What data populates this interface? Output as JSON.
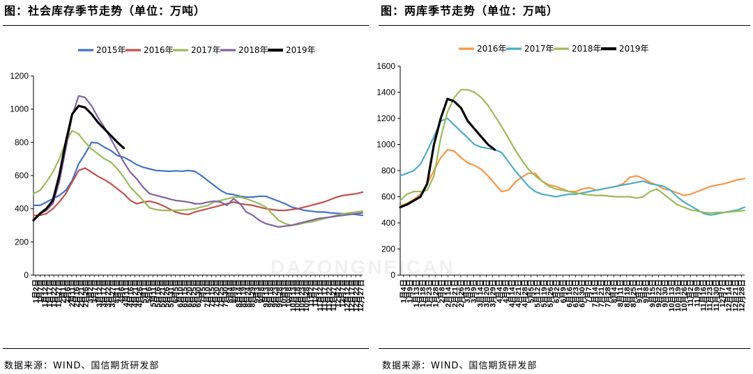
{
  "left_title": "图：社会库存季节走势（单位：万吨）",
  "right_title": "图：两库季节走势（单位：万吨）",
  "source_left": "数据来源：WIND、国信期货研发部",
  "source_right": "数据来源：WIND、国信期货研发部",
  "watermark": "DAZONGNEICAN",
  "colors": {
    "2015年": "#4472C4",
    "2016年": "#C0504D",
    "2017年": "#9BBB59",
    "2018年": "#8064A2",
    "2019年": "#000000",
    "2016年_r": "#F79646",
    "2017年_r": "#4BACC6"
  },
  "chart_data": [
    {
      "type": "line",
      "title": "社会库存季节走势（单位：万吨）",
      "ylim": [
        0,
        1200
      ],
      "yticks": [
        0,
        200,
        400,
        600,
        800,
        1000,
        1200
      ],
      "xlim": [
        0,
        51
      ],
      "x_tick_labels": [
        "1月2日",
        "1月7日",
        "1月12日",
        "1月17日",
        "1月22日",
        "1月27日",
        "2月1日",
        "2月6日",
        "2月11日",
        "2月16日",
        "2月21日",
        "2月26日",
        "3月2日",
        "3月7日",
        "3月12日",
        "3月17日",
        "3月22日",
        "3月27日",
        "4月1日",
        "4月6日",
        "4月11日",
        "4月16日",
        "4月21日",
        "4月26日",
        "5月1日",
        "5月6日",
        "5月11日",
        "5月16日",
        "5月21日",
        "5月26日",
        "5月31日",
        "6月5日",
        "6月10日",
        "6月15日",
        "6月20日",
        "6月25日",
        "6月30日",
        "7月5日",
        "7月10日",
        "7月15日",
        "7月20日",
        "7月25日",
        "7月30日",
        "8月4日",
        "8月9日",
        "8月14日",
        "8月19日",
        "8月24日",
        "8月29日",
        "9月3日",
        "9月8日",
        "9月13日",
        "9月18日",
        "9月23日",
        "9月28日",
        "10月3日",
        "10月8日",
        "10月13日",
        "10月18日",
        "10月23日",
        "10月28日",
        "11月2日",
        "11月7日",
        "11月12日",
        "11月17日",
        "11月22日",
        "11月27日",
        "12月2日",
        "12月7日",
        "12月12日",
        "12月17日",
        "12月22日",
        "12月27日"
      ],
      "legend": "top-center",
      "grid": false,
      "series": [
        {
          "name": "2015年",
          "color": "#4472C4",
          "width": 2.2,
          "x": [
            0,
            1,
            2,
            3,
            4,
            5,
            6,
            7,
            8,
            9,
            10,
            11,
            12,
            13,
            14,
            15,
            16,
            17,
            18,
            19,
            20,
            21,
            22,
            23,
            24,
            25,
            26,
            27,
            28,
            29,
            30,
            31,
            32,
            33,
            34,
            35,
            36,
            37,
            38,
            39,
            40,
            41,
            42,
            43,
            44,
            45,
            46,
            47,
            48,
            49,
            50,
            51
          ],
          "values": [
            420,
            420,
            440,
            460,
            480,
            510,
            570,
            670,
            730,
            800,
            795,
            770,
            750,
            720,
            710,
            690,
            665,
            650,
            640,
            630,
            628,
            625,
            628,
            626,
            630,
            625,
            600,
            570,
            540,
            510,
            490,
            485,
            475,
            470,
            470,
            475,
            475,
            460,
            445,
            430,
            410,
            400,
            390,
            385,
            380,
            380,
            375,
            372,
            370,
            368,
            365,
            360
          ]
        },
        {
          "name": "2016年",
          "color": "#C0504D",
          "width": 2.2,
          "x": [
            0,
            1,
            2,
            3,
            4,
            5,
            6,
            7,
            8,
            9,
            10,
            11,
            12,
            13,
            14,
            15,
            16,
            17,
            18,
            19,
            20,
            21,
            22,
            23,
            24,
            25,
            26,
            27,
            28,
            29,
            30,
            31,
            32,
            33,
            34,
            35,
            36,
            37,
            38,
            39,
            40,
            41,
            42,
            43,
            44,
            45,
            46,
            47,
            48,
            49,
            50,
            51
          ],
          "values": [
            360,
            360,
            370,
            400,
            440,
            490,
            560,
            630,
            645,
            620,
            595,
            575,
            550,
            520,
            490,
            450,
            430,
            440,
            445,
            435,
            420,
            400,
            380,
            370,
            365,
            380,
            390,
            400,
            410,
            420,
            430,
            440,
            430,
            425,
            420,
            410,
            400,
            395,
            390,
            390,
            395,
            400,
            410,
            420,
            430,
            440,
            455,
            470,
            480,
            485,
            490,
            500
          ]
        },
        {
          "name": "2017年",
          "color": "#9BBB59",
          "width": 2.2,
          "x": [
            0,
            1,
            2,
            3,
            4,
            5,
            6,
            7,
            8,
            9,
            10,
            11,
            12,
            13,
            14,
            15,
            16,
            17,
            18,
            19,
            20,
            21,
            22,
            23,
            24,
            25,
            26,
            27,
            28,
            29,
            30,
            31,
            32,
            33,
            34,
            35,
            36,
            37,
            38,
            39,
            40,
            41,
            42,
            43,
            44,
            45,
            46,
            47,
            48,
            49,
            50,
            51
          ],
          "values": [
            490,
            510,
            560,
            620,
            700,
            800,
            870,
            850,
            800,
            760,
            730,
            700,
            680,
            640,
            590,
            530,
            490,
            450,
            405,
            395,
            390,
            390,
            390,
            392,
            395,
            400,
            410,
            420,
            440,
            450,
            460,
            470,
            470,
            460,
            445,
            430,
            410,
            370,
            330,
            310,
            300,
            305,
            315,
            320,
            330,
            340,
            350,
            360,
            370,
            375,
            380,
            385
          ]
        },
        {
          "name": "2018年",
          "color": "#8064A2",
          "width": 2.2,
          "x": [
            0,
            1,
            2,
            3,
            4,
            5,
            6,
            7,
            8,
            9,
            10,
            11,
            12,
            13,
            14,
            15,
            16,
            17,
            18,
            19,
            20,
            21,
            22,
            23,
            24,
            25,
            26,
            27,
            28,
            29,
            30,
            31,
            32,
            33,
            34,
            35,
            36,
            37,
            38,
            39,
            40,
            41,
            42,
            43,
            44,
            45,
            46,
            47,
            48,
            49,
            50,
            51
          ],
          "values": [
            335,
            370,
            390,
            430,
            560,
            760,
            960,
            1080,
            1070,
            1020,
            950,
            890,
            820,
            750,
            680,
            620,
            580,
            530,
            490,
            480,
            470,
            460,
            450,
            445,
            440,
            430,
            430,
            440,
            445,
            440,
            420,
            460,
            430,
            380,
            360,
            330,
            310,
            300,
            290,
            295,
            300,
            310,
            320,
            330,
            340,
            345,
            350,
            355,
            360,
            365,
            370,
            375
          ]
        },
        {
          "name": "2019年",
          "color": "#000000",
          "width": 3.2,
          "x": [
            0,
            1,
            2,
            3,
            4,
            5,
            6,
            7,
            8,
            9,
            10,
            11,
            12,
            13,
            14
          ],
          "values": [
            330,
            370,
            400,
            450,
            600,
            800,
            970,
            1020,
            1010,
            970,
            920,
            880,
            840,
            800,
            765
          ]
        }
      ]
    },
    {
      "type": "line",
      "title": "两库季节走势（单位：万吨）",
      "ylim": [
        0,
        1600
      ],
      "yticks": [
        0,
        200,
        400,
        600,
        800,
        1000,
        1200,
        1400,
        1600
      ],
      "xlim": [
        0,
        51
      ],
      "x_tick_labels": [
        "1月4日",
        "1月9日",
        "1月13日",
        "1月18日",
        "1月23日",
        "1月28日",
        "2月8日",
        "2月14日",
        "2月21日",
        "2月26日",
        "3月3日",
        "3月9日",
        "3月14日",
        "3月20日",
        "3月29日",
        "4月4日",
        "4月9日",
        "4月14日",
        "4月21日",
        "4月28日",
        "5月5日",
        "5月12日",
        "5月19日",
        "5月26日",
        "6月2日",
        "6月9日",
        "6月16日",
        "6月23日",
        "6月30日",
        "7月7日",
        "7月14日",
        "7月21日",
        "7月28日",
        "8月4日",
        "8月11日",
        "8月18日",
        "8月25日",
        "9月1日",
        "9月8日",
        "9月15日",
        "9月22日",
        "9月30日",
        "10月13日",
        "10月19日",
        "10月26日",
        "11月2日",
        "11月9日",
        "11月16日",
        "11月23日",
        "11月30日",
        "12月7日",
        "12月14日",
        "12月21日",
        "12月28日"
      ],
      "legend": "top-center",
      "grid": false,
      "series": [
        {
          "name": "2016年",
          "color": "#F79646",
          "width": 2.2,
          "x": [
            0,
            1,
            2,
            3,
            4,
            5,
            6,
            7,
            8,
            9,
            10,
            11,
            12,
            13,
            14,
            15,
            16,
            17,
            18,
            19,
            20,
            21,
            22,
            23,
            24,
            25,
            26,
            27,
            28,
            29,
            30,
            31,
            32,
            33,
            34,
            35,
            36,
            37,
            38,
            39,
            40,
            41,
            42,
            43,
            44,
            45,
            46,
            47,
            48,
            49,
            50,
            51
          ],
          "values": [
            530,
            550,
            580,
            620,
            700,
            800,
            900,
            960,
            950,
            900,
            860,
            840,
            810,
            760,
            700,
            640,
            650,
            710,
            750,
            780,
            780,
            720,
            690,
            680,
            660,
            640,
            640,
            660,
            670,
            650,
            660,
            670,
            680,
            700,
            750,
            760,
            740,
            710,
            690,
            660,
            650,
            630,
            610,
            620,
            640,
            660,
            680,
            690,
            700,
            715,
            730,
            740
          ]
        },
        {
          "name": "2017年",
          "color": "#4BACC6",
          "width": 2.2,
          "x": [
            0,
            1,
            2,
            3,
            4,
            5,
            6,
            7,
            8,
            9,
            10,
            11,
            12,
            13,
            14,
            15,
            16,
            17,
            18,
            19,
            20,
            21,
            22,
            23,
            24,
            25,
            26,
            27,
            28,
            29,
            30,
            31,
            32,
            33,
            34,
            35,
            36,
            37,
            38,
            39,
            40,
            41,
            42,
            43,
            44,
            45,
            46,
            47,
            48,
            49,
            50,
            51
          ],
          "values": [
            760,
            780,
            800,
            850,
            950,
            1060,
            1180,
            1200,
            1150,
            1100,
            1050,
            1000,
            980,
            970,
            960,
            940,
            870,
            800,
            740,
            680,
            640,
            620,
            610,
            600,
            610,
            620,
            620,
            630,
            640,
            650,
            660,
            670,
            680,
            690,
            700,
            710,
            720,
            700,
            690,
            680,
            650,
            600,
            560,
            530,
            500,
            470,
            460,
            470,
            480,
            490,
            500,
            520
          ]
        },
        {
          "name": "2018年",
          "color": "#9BBB59",
          "width": 2.2,
          "x": [
            0,
            1,
            2,
            3,
            4,
            5,
            6,
            7,
            8,
            9,
            10,
            11,
            12,
            13,
            14,
            15,
            16,
            17,
            18,
            19,
            20,
            21,
            22,
            23,
            24,
            25,
            26,
            27,
            28,
            29,
            30,
            31,
            32,
            33,
            34,
            35,
            36,
            37,
            38,
            39,
            40,
            41,
            42,
            43,
            44,
            45,
            46,
            47,
            48,
            49,
            50,
            51
          ],
          "values": [
            570,
            620,
            640,
            640,
            650,
            760,
            1050,
            1250,
            1360,
            1420,
            1420,
            1400,
            1360,
            1300,
            1220,
            1140,
            1050,
            960,
            880,
            810,
            760,
            720,
            680,
            660,
            650,
            640,
            630,
            620,
            615,
            610,
            610,
            605,
            600,
            600,
            600,
            590,
            600,
            640,
            660,
            620,
            580,
            540,
            520,
            500,
            490,
            480,
            475,
            480,
            480,
            485,
            490,
            495
          ]
        },
        {
          "name": "2019年",
          "color": "#000000",
          "width": 3.2,
          "x": [
            0,
            1,
            2,
            3,
            4,
            5,
            6,
            7,
            8,
            9,
            10,
            11,
            12,
            13,
            14
          ],
          "values": [
            520,
            540,
            570,
            600,
            700,
            1000,
            1200,
            1350,
            1330,
            1280,
            1180,
            1120,
            1060,
            1000,
            960
          ]
        }
      ]
    }
  ]
}
